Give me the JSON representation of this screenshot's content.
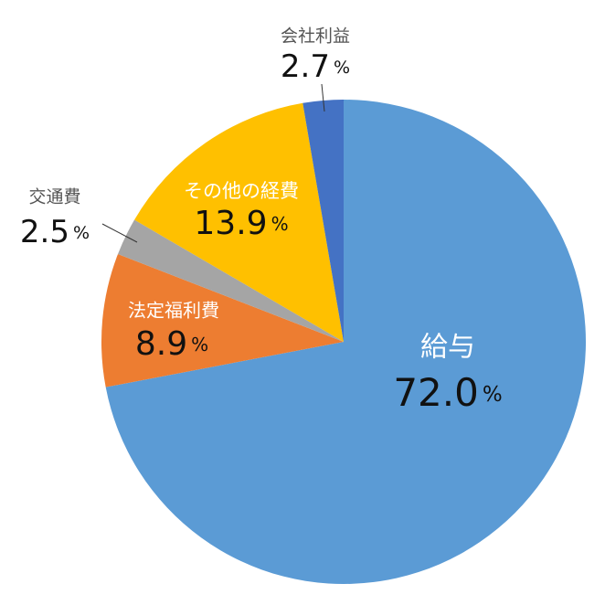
{
  "chart_data": {
    "type": "pie",
    "categories": [
      "給与",
      "法定福利費",
      "交通費",
      "その他の経費",
      "会社利益"
    ],
    "values": [
      72.0,
      8.9,
      2.5,
      13.9,
      2.7
    ],
    "value_labels": [
      "72.0",
      "8.9",
      "2.5",
      "13.9",
      "2.7"
    ],
    "unit": "%",
    "colors": [
      "#5b9bd5",
      "#ed7d31",
      "#a5a5a5",
      "#ffc000",
      "#4472c4"
    ]
  }
}
